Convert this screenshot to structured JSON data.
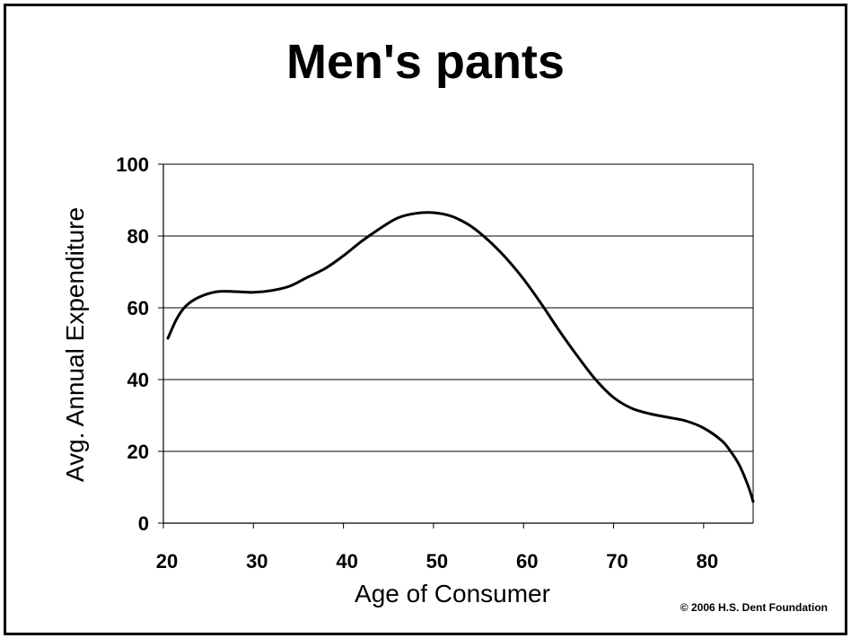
{
  "chart_data": {
    "type": "line",
    "title": "Men's pants",
    "xlabel": "Age of Consumer",
    "ylabel": "Avg. Annual Expenditure",
    "xlim": [
      20,
      85.5
    ],
    "ylim": [
      0,
      100
    ],
    "x_ticks": [
      "20",
      "30",
      "40",
      "50",
      "60",
      "70",
      "80"
    ],
    "y_ticks": [
      "0",
      "20",
      "40",
      "60",
      "80",
      "100"
    ],
    "grid": "horizontal",
    "line_color": "#000000",
    "series": [
      {
        "x": [
          20.5,
          21.5,
          22.5,
          24,
          26,
          28,
          30,
          32,
          34,
          36,
          38,
          40,
          42,
          44,
          46,
          48,
          50,
          52,
          54,
          56,
          58,
          60,
          62,
          64,
          66,
          68,
          70,
          72,
          74,
          76,
          78,
          80,
          82,
          83,
          84,
          85,
          85.5
        ],
        "values": [
          51.5,
          57,
          60.5,
          63,
          64.5,
          64.5,
          64.3,
          64.8,
          66,
          68.5,
          71,
          74.5,
          78.5,
          82,
          85,
          86.3,
          86.5,
          85.5,
          83,
          79,
          74,
          68,
          61,
          53.5,
          46.5,
          40,
          35,
          32,
          30.5,
          29.5,
          28.5,
          26.5,
          23,
          20,
          16,
          10,
          6
        ]
      }
    ]
  },
  "footer": {
    "copyright": "© 2006 H.S. Dent Foundation"
  }
}
